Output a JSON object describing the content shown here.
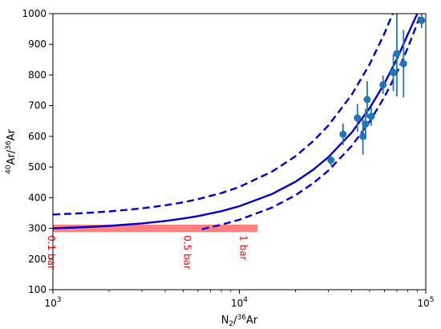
{
  "chart_data": {
    "type": "scatter",
    "xlabel": "N",
    "xlabel_sub": "2",
    "xlabel_sep": "/",
    "xlabel_sup": "36",
    "xlabel_tail": "Ar",
    "ylabel_sup1": "40",
    "ylabel_mid": "Ar/",
    "ylabel_sup2": "36",
    "ylabel_tail": "Ar",
    "xscale": "log",
    "xlim": [
      1000,
      100000
    ],
    "ylim": [
      100,
      1000
    ],
    "xticks": [
      {
        "value": 1000,
        "base": "10",
        "exp": "3"
      },
      {
        "value": 10000,
        "base": "10",
        "exp": "4"
      },
      {
        "value": 100000,
        "base": "10",
        "exp": "5"
      }
    ],
    "yticks": [
      100,
      200,
      300,
      400,
      500,
      600,
      700,
      800,
      900,
      1000
    ],
    "grid": false,
    "colors": {
      "curve": "#0000cc",
      "points": "#1f77b4",
      "band": "#ff8080",
      "annotation": "#ff0000"
    },
    "curves": {
      "mid": [
        [
          1000,
          300
        ],
        [
          1500,
          304
        ],
        [
          2000,
          308
        ],
        [
          3000,
          316
        ],
        [
          4000,
          324
        ],
        [
          5000,
          332
        ],
        [
          6000,
          340
        ],
        [
          8000,
          356
        ],
        [
          10000,
          372
        ],
        [
          15000,
          412
        ],
        [
          20000,
          452
        ],
        [
          25000,
          492
        ],
        [
          30000,
          532
        ],
        [
          40000,
          612
        ],
        [
          50000,
          692
        ],
        [
          60000,
          772
        ],
        [
          70000,
          852
        ],
        [
          80000,
          932
        ],
        [
          90000,
          1000
        ]
      ],
      "upper": [
        [
          1000,
          345
        ],
        [
          1500,
          350
        ],
        [
          2000,
          355
        ],
        [
          3000,
          365
        ],
        [
          4000,
          375
        ],
        [
          5000,
          385
        ],
        [
          6000,
          395
        ],
        [
          8000,
          415
        ],
        [
          10000,
          435
        ],
        [
          15000,
          485
        ],
        [
          20000,
          535
        ],
        [
          25000,
          585
        ],
        [
          30000,
          635
        ],
        [
          40000,
          735
        ],
        [
          50000,
          835
        ],
        [
          60000,
          935
        ],
        [
          66500,
          1000
        ]
      ],
      "lower": [
        [
          6300,
          297
        ],
        [
          8000,
          312
        ],
        [
          10000,
          328
        ],
        [
          15000,
          368
        ],
        [
          20000,
          408
        ],
        [
          25000,
          448
        ],
        [
          30000,
          488
        ],
        [
          40000,
          568
        ],
        [
          50000,
          648
        ],
        [
          60000,
          728
        ],
        [
          70000,
          808
        ],
        [
          80000,
          888
        ],
        [
          90000,
          968
        ],
        [
          94000,
          1000
        ]
      ]
    },
    "points": [
      {
        "x": 31000,
        "y": 522,
        "err": 18
      },
      {
        "x": 36000,
        "y": 607,
        "err": 35
      },
      {
        "x": 43000,
        "y": 660,
        "err": 45
      },
      {
        "x": 46000,
        "y": 600,
        "err": 60
      },
      {
        "x": 47500,
        "y": 640,
        "err": 50
      },
      {
        "x": 48500,
        "y": 720,
        "err": 60
      },
      {
        "x": 51000,
        "y": 665,
        "err": 30
      },
      {
        "x": 59000,
        "y": 768,
        "err": 30
      },
      {
        "x": 67000,
        "y": 808,
        "err": 60
      },
      {
        "x": 70000,
        "y": 870,
        "err": 140
      },
      {
        "x": 76000,
        "y": 837,
        "err": 110
      },
      {
        "x": 95000,
        "y": 978,
        "err": 25
      }
    ],
    "band": {
      "x0": 1000,
      "x1": 12500,
      "y0": 288,
      "y1": 312
    },
    "annotations": [
      {
        "x": 1030,
        "text": "0.1 bar"
      },
      {
        "x": 5500,
        "text": "0.5 bar"
      },
      {
        "x": 11000,
        "text": "1 bar"
      }
    ]
  }
}
